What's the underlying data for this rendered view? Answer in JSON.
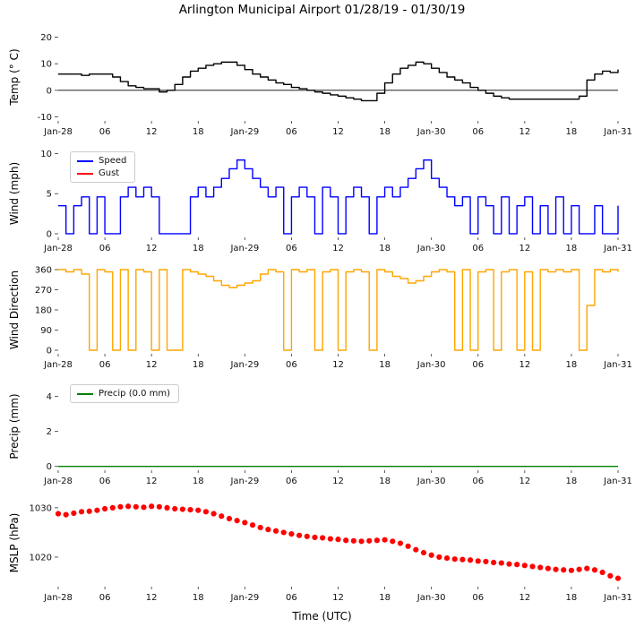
{
  "title": "Arlington Municipal Airport 01/28/19 - 01/30/19",
  "xlabel": "Time (UTC)",
  "x_axis": {
    "start": 0,
    "end": 72,
    "ticks": [
      0,
      6,
      12,
      18,
      24,
      30,
      36,
      42,
      48,
      54,
      60,
      66,
      72
    ],
    "tick_labels": [
      "Jan-28",
      "06",
      "12",
      "18",
      "Jan-29",
      "06",
      "12",
      "18",
      "Jan-30",
      "06",
      "12",
      "18",
      "Jan-31"
    ]
  },
  "chart_data": [
    {
      "type": "step",
      "ylabel": "Temp (° C)",
      "ylim": [
        -11.5,
        21.5
      ],
      "yticks": [
        -10,
        0,
        10,
        20
      ],
      "zero_line": true,
      "series": [
        {
          "name": "Temp",
          "color": "#000000",
          "values": [
            6.1,
            6.1,
            6.1,
            5.6,
            6.1,
            6.1,
            6.1,
            5.0,
            3.3,
            1.7,
            1.1,
            0.6,
            0.6,
            -0.6,
            0.0,
            2.2,
            5.0,
            7.2,
            8.3,
            9.4,
            10.0,
            10.6,
            10.6,
            9.4,
            7.8,
            6.1,
            5.0,
            3.9,
            2.8,
            2.2,
            1.1,
            0.6,
            0.0,
            -0.6,
            -1.1,
            -1.7,
            -2.2,
            -2.8,
            -3.3,
            -3.9,
            -3.9,
            -1.1,
            2.8,
            6.1,
            8.3,
            9.4,
            10.6,
            10.0,
            8.3,
            6.7,
            5.0,
            3.9,
            2.8,
            1.1,
            0.0,
            -1.1,
            -2.2,
            -2.8,
            -3.3,
            -3.3,
            -3.3,
            -3.3,
            -3.3,
            -3.3,
            -3.3,
            -3.3,
            -3.3,
            -2.2,
            3.9,
            6.1,
            7.2,
            6.7,
            7.8
          ]
        }
      ]
    },
    {
      "type": "step",
      "ylabel": "Wind (mph)",
      "ylim": [
        -0.45,
        10.5
      ],
      "yticks": [
        0,
        5,
        10
      ],
      "zero_line": false,
      "legend": [
        {
          "label": "Speed",
          "color": "#0000ff"
        },
        {
          "label": "Gust",
          "color": "#ff0000"
        }
      ],
      "series": [
        {
          "name": "Speed",
          "color": "#0000ff",
          "values": [
            3.5,
            0,
            3.5,
            4.6,
            0,
            4.6,
            0,
            0,
            4.6,
            5.8,
            4.6,
            5.8,
            4.6,
            0,
            0,
            0,
            0,
            4.6,
            5.8,
            4.6,
            5.8,
            6.9,
            8.1,
            9.2,
            8.1,
            6.9,
            5.8,
            4.6,
            5.8,
            0,
            4.6,
            5.8,
            4.6,
            0,
            5.8,
            4.6,
            0,
            4.6,
            5.8,
            4.6,
            0,
            4.6,
            5.8,
            4.6,
            5.8,
            6.9,
            8.1,
            9.2,
            6.9,
            5.8,
            4.6,
            3.5,
            4.6,
            0,
            4.6,
            3.5,
            0,
            4.6,
            0,
            3.5,
            4.6,
            0,
            3.5,
            0,
            4.6,
            0,
            3.5,
            0,
            0,
            3.5,
            0,
            0,
            3.5
          ]
        },
        {
          "name": "Gust",
          "color": "#ff0000",
          "values": []
        }
      ]
    },
    {
      "type": "step",
      "ylabel": "Wind Direction",
      "ylim": [
        -16,
        376
      ],
      "yticks": [
        0,
        90,
        180,
        270,
        360
      ],
      "zero_line": false,
      "series": [
        {
          "name": "Direction",
          "color": "#ffa500",
          "values": [
            360,
            350,
            360,
            340,
            0,
            360,
            350,
            0,
            360,
            0,
            360,
            350,
            0,
            360,
            0,
            0,
            360,
            350,
            340,
            330,
            310,
            290,
            280,
            290,
            300,
            310,
            340,
            360,
            350,
            0,
            360,
            350,
            360,
            0,
            350,
            360,
            0,
            350,
            360,
            350,
            0,
            360,
            350,
            330,
            320,
            300,
            310,
            330,
            350,
            360,
            350,
            0,
            360,
            0,
            350,
            360,
            0,
            350,
            360,
            0,
            350,
            0,
            360,
            350,
            360,
            350,
            360,
            0,
            200,
            360,
            350,
            360,
            350
          ]
        }
      ]
    },
    {
      "type": "line",
      "ylabel": "Precip (mm)",
      "ylim": [
        -0.22,
        4.8
      ],
      "yticks": [
        0,
        2,
        4
      ],
      "zero_line": false,
      "legend": [
        {
          "label": "Precip (0.0 mm)",
          "color": "#008000"
        }
      ],
      "series": [
        {
          "name": "Precip",
          "color": "#008000",
          "values": [
            0,
            0,
            0,
            0,
            0,
            0,
            0,
            0,
            0,
            0,
            0,
            0,
            0,
            0,
            0,
            0,
            0,
            0,
            0,
            0,
            0,
            0,
            0,
            0,
            0,
            0,
            0,
            0,
            0,
            0,
            0,
            0,
            0,
            0,
            0,
            0,
            0,
            0,
            0,
            0,
            0,
            0,
            0,
            0,
            0,
            0,
            0,
            0,
            0,
            0,
            0,
            0,
            0,
            0,
            0,
            0,
            0,
            0,
            0,
            0,
            0,
            0,
            0,
            0,
            0,
            0,
            0,
            0,
            0,
            0,
            0,
            0,
            0
          ]
        }
      ]
    },
    {
      "type": "scatter",
      "ylabel": "MSLP (hPa)",
      "ylim": [
        1014,
        1031.8
      ],
      "yticks": [
        1020,
        1030
      ],
      "zero_line": false,
      "series": [
        {
          "name": "MSLP",
          "color": "#ff0000",
          "values": [
            1028.8,
            1028.6,
            1028.9,
            1029.2,
            1029.3,
            1029.5,
            1029.8,
            1030.0,
            1030.2,
            1030.3,
            1030.2,
            1030.1,
            1030.3,
            1030.2,
            1030.0,
            1029.8,
            1029.7,
            1029.6,
            1029.5,
            1029.2,
            1028.8,
            1028.3,
            1027.8,
            1027.4,
            1027.0,
            1026.5,
            1026.0,
            1025.6,
            1025.3,
            1025.0,
            1024.7,
            1024.4,
            1024.2,
            1024.0,
            1023.9,
            1023.7,
            1023.6,
            1023.4,
            1023.3,
            1023.2,
            1023.3,
            1023.4,
            1023.5,
            1023.2,
            1022.8,
            1022.2,
            1021.5,
            1020.9,
            1020.4,
            1020.0,
            1019.8,
            1019.6,
            1019.5,
            1019.4,
            1019.2,
            1019.1,
            1018.9,
            1018.8,
            1018.6,
            1018.5,
            1018.3,
            1018.1,
            1017.9,
            1017.7,
            1017.5,
            1017.4,
            1017.3,
            1017.5,
            1017.7,
            1017.4,
            1016.9,
            1016.2,
            1015.7
          ]
        }
      ]
    }
  ]
}
